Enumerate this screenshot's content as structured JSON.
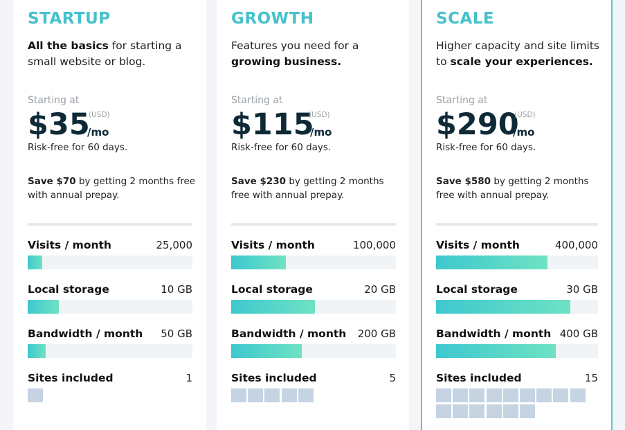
{
  "plans": [
    {
      "name": "STARTUP",
      "desc_bold": "All the basics",
      "desc_rest": " for starting a small website or blog.",
      "starting": "Starting at",
      "price": "$35",
      "currency": "(USD)",
      "per": "/mo",
      "riskfree": "Risk-free for 60 days.",
      "save_bold": "Save $70",
      "save_rest": " by getting 2 months free with annual prepay.",
      "metrics": [
        {
          "label": "Visits / month",
          "value": "25,000",
          "fill_percent": 9
        },
        {
          "label": "Local storage",
          "value": "10 GB",
          "fill_percent": 19
        },
        {
          "label": "Bandwidth / month",
          "value": "50 GB",
          "fill_percent": 11
        }
      ],
      "sites_label": "Sites included",
      "sites_value": "1",
      "sites_count": 1
    },
    {
      "name": "GROWTH",
      "desc_plain": "Features you need for a ",
      "desc_bold": "growing business.",
      "starting": "Starting at",
      "price": "$115",
      "currency": "(USD)",
      "per": "/mo",
      "riskfree": "Risk-free for 60 days.",
      "save_bold": "Save $230",
      "save_rest": " by getting 2 months free with annual prepay.",
      "metrics": [
        {
          "label": "Visits / month",
          "value": "100,000",
          "fill_percent": 33
        },
        {
          "label": "Local storage",
          "value": "20 GB",
          "fill_percent": 51
        },
        {
          "label": "Bandwidth / month",
          "value": "200 GB",
          "fill_percent": 43
        }
      ],
      "sites_label": "Sites included",
      "sites_value": "5",
      "sites_count": 5
    },
    {
      "name": "SCALE",
      "desc_plain": "Higher capacity and site limits to ",
      "desc_bold": "scale your experiences.",
      "starting": "Starting at",
      "price": "$290",
      "currency": "(USD)",
      "per": "/mo",
      "riskfree": "Risk-free for 60 days.",
      "save_bold": "Save $580",
      "save_rest": " by getting 2 months free with annual prepay.",
      "metrics": [
        {
          "label": "Visits / month",
          "value": "400,000",
          "fill_percent": 69
        },
        {
          "label": "Local storage",
          "value": "30 GB",
          "fill_percent": 83
        },
        {
          "label": "Bandwidth / month",
          "value": "400 GB",
          "fill_percent": 74
        }
      ],
      "sites_label": "Sites included",
      "sites_value": "15",
      "sites_count": 15
    }
  ],
  "colors": {
    "accent": "#45c1cc",
    "price": "#0e2a36",
    "bar_start": "#3ec8cf",
    "bar_end": "#6ee2c3",
    "site_block": "#c5d3e3",
    "track": "#f1f4f7",
    "highlight_border": "#54c9d5"
  }
}
